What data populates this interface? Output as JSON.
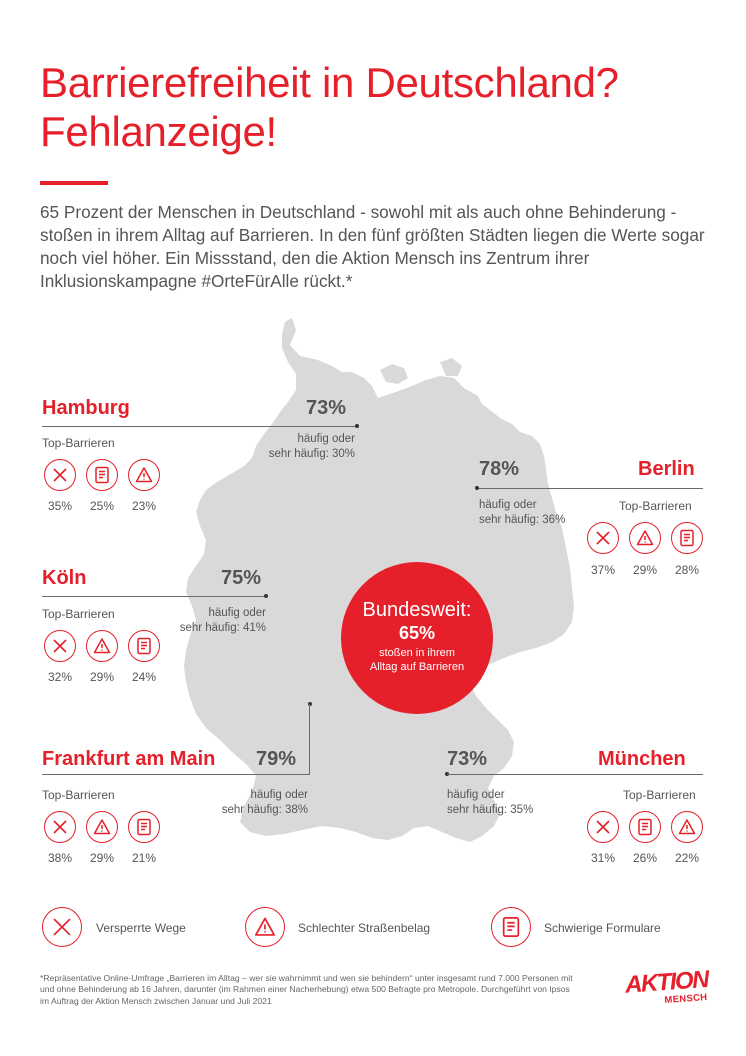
{
  "title_line1": "Barrierefreiheit in Deutschland?",
  "title_line2": "Fehlanzeige!",
  "intro": "65 Prozent der Menschen in Deutschland - sowohl mit als auch ohne Behinderung - stoßen in ihrem Alltag auf Barrieren. In den fünf größten Städten liegen die Werte sogar noch viel höher. Ein Missstand, den die Aktion Mensch ins Zentrum ihrer Inklusionskampagne #OrteFürAlle rückt.*",
  "national": {
    "label": "Bundesweit:",
    "value": "65%",
    "sub_line1": "stoßen in ihrem",
    "sub_line2": "Alltag auf Barrieren"
  },
  "top_label": "Top-Barrieren",
  "cities": {
    "hamburg": {
      "name": "Hamburg",
      "value": "73%",
      "sub1": "häufig oder",
      "sub2": "sehr häufig: 30%",
      "barriers": [
        {
          "icon": "x-icon",
          "pct": "35%"
        },
        {
          "icon": "form-icon",
          "pct": "25%"
        },
        {
          "icon": "warning-icon",
          "pct": "23%"
        }
      ]
    },
    "berlin": {
      "name": "Berlin",
      "value": "78%",
      "sub1": "häufig oder",
      "sub2": "sehr häufig: 36%",
      "barriers": [
        {
          "icon": "x-icon",
          "pct": "37%"
        },
        {
          "icon": "warning-icon",
          "pct": "29%"
        },
        {
          "icon": "form-icon",
          "pct": "28%"
        }
      ]
    },
    "koeln": {
      "name": "Köln",
      "value": "75%",
      "sub1": "häufig oder",
      "sub2": "sehr häufig: 41%",
      "barriers": [
        {
          "icon": "x-icon",
          "pct": "32%"
        },
        {
          "icon": "warning-icon",
          "pct": "29%"
        },
        {
          "icon": "form-icon",
          "pct": "24%"
        }
      ]
    },
    "frankfurt": {
      "name": "Frankfurt am Main",
      "value": "79%",
      "sub1": "häufig oder",
      "sub2": "sehr häufig: 38%",
      "barriers": [
        {
          "icon": "x-icon",
          "pct": "38%"
        },
        {
          "icon": "warning-icon",
          "pct": "29%"
        },
        {
          "icon": "form-icon",
          "pct": "21%"
        }
      ]
    },
    "muenchen": {
      "name": "München",
      "value": "73%",
      "sub1": "häufig oder",
      "sub2": "sehr häufig: 35%",
      "barriers": [
        {
          "icon": "x-icon",
          "pct": "31%"
        },
        {
          "icon": "form-icon",
          "pct": "26%"
        },
        {
          "icon": "warning-icon",
          "pct": "22%"
        }
      ]
    }
  },
  "legend": {
    "blocked": "Versperrte Wege",
    "road": "Schlechter Straßenbelag",
    "forms": "Schwierige Formulare"
  },
  "footnote": "*Repräsentative Online-Umfrage „Barrieren im Alltag – wer sie wahrnimmt und wen sie behindern“ unter insgesamt rund 7.000 Personen mit und ohne Behinderung ab 16 Jahren, darunter (im Rahmen einer Nacherhebung) etwa 500 Befragte pro Metropole. Durchgeführt von Ipsos im Auftrag der Aktion Mensch zwischen Januar und Juli 2021",
  "logo": {
    "line1": "AKTION",
    "line2": "MENSCH"
  },
  "colors": {
    "accent": "#e5202a",
    "map": "#d9d9d9",
    "text": "#555555"
  }
}
